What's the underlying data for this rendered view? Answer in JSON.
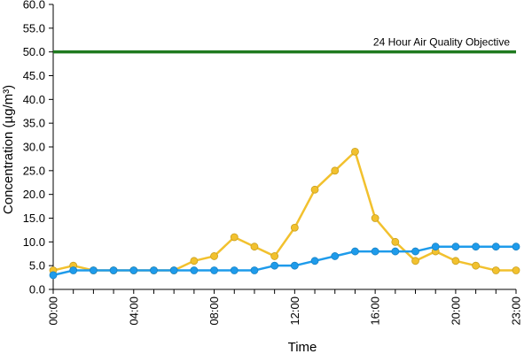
{
  "chart_data": {
    "type": "line",
    "xlabel": "Time",
    "ylabel": "Concentration (µg/m³)",
    "ylim": [
      0,
      60
    ],
    "ytick_labels": [
      "0.0",
      "5.0",
      "10.0",
      "15.0",
      "20.0",
      "25.0",
      "30.0",
      "35.0",
      "40.0",
      "45.0",
      "50.0",
      "55.0",
      "60.0"
    ],
    "xtick_labels": [
      "00:00",
      "04:00",
      "08:00",
      "12:00",
      "16:00",
      "20:00",
      "23:00"
    ],
    "x": [
      0,
      1,
      2,
      3,
      4,
      5,
      6,
      7,
      8,
      9,
      10,
      11,
      12,
      13,
      14,
      15,
      16,
      17,
      18,
      19,
      20,
      21,
      22,
      23
    ],
    "grid": false,
    "series": [
      {
        "color": "#F2C12E",
        "values": [
          4,
          5,
          4,
          4,
          4,
          4,
          4,
          6,
          7,
          11,
          9,
          7,
          13,
          21,
          25,
          29,
          15,
          10,
          6,
          8,
          6,
          5,
          4,
          4
        ]
      },
      {
        "color": "#1E9BEB",
        "values": [
          3,
          4,
          4,
          4,
          4,
          4,
          4,
          4,
          4,
          4,
          4,
          5,
          5,
          6,
          7,
          8,
          8,
          8,
          8,
          9,
          9,
          9,
          9,
          9
        ]
      }
    ],
    "objective": {
      "label": "24 Hour Air Quality Objective",
      "value": 50,
      "color": "#1F7A1F"
    }
  }
}
